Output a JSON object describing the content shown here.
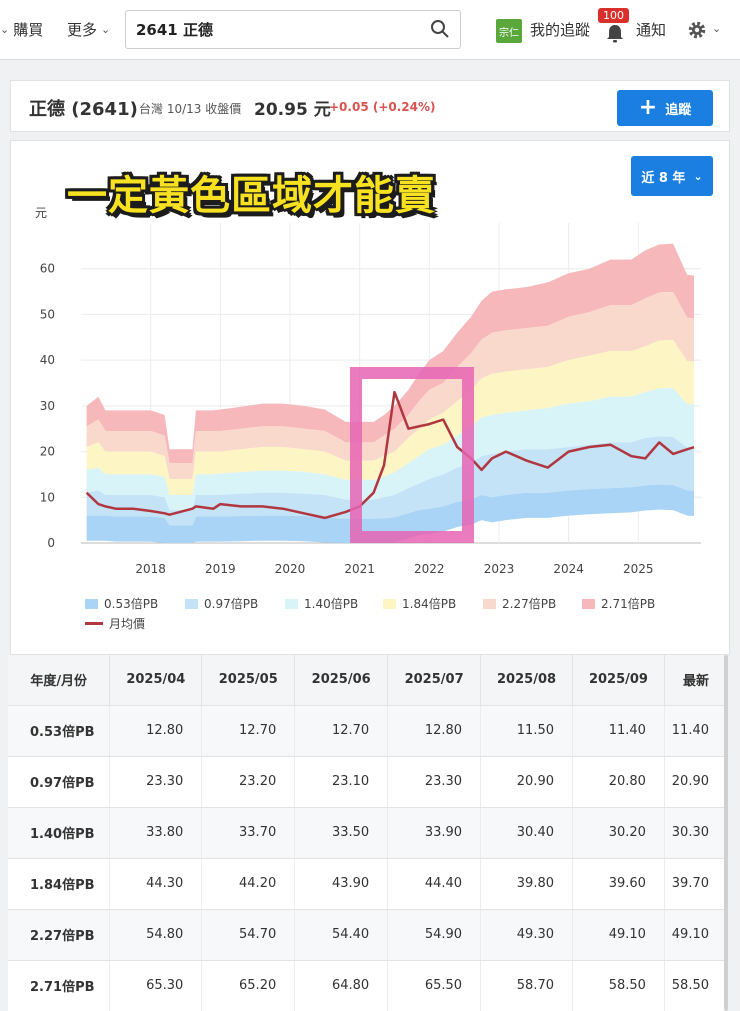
{
  "nav": {
    "buy": "購買",
    "more": "更多",
    "search_value": "2641 正德",
    "avatar_text": "宗仁",
    "tracking": "我的追蹤",
    "badge": "100",
    "notify": "通知"
  },
  "stock": {
    "name": "正德 (2641)",
    "meta": "台灣 10/13 收盤價",
    "price": "20.95 元",
    "change": "+0.05 (+0.24%)",
    "track_label": "追蹤"
  },
  "chart": {
    "overlay_text": "一定黃色區域才能賣",
    "range_label": "近 8 年",
    "unit": "元"
  },
  "chart_data": {
    "type": "area",
    "ylabel": "元",
    "ylim": [
      0,
      70
    ],
    "yticks": [
      0,
      10,
      20,
      30,
      40,
      50,
      60
    ],
    "xlim": [
      2017.0,
      2025.9
    ],
    "xticks": [
      "2018",
      "2019",
      "2020",
      "2021",
      "2022",
      "2023",
      "2024",
      "2025"
    ],
    "legend_position": "bottom",
    "x": [
      2017.08,
      2017.25,
      2017.35,
      2017.5,
      2017.75,
      2018.0,
      2018.2,
      2018.27,
      2018.6,
      2018.65,
      2018.9,
      2019.0,
      2019.3,
      2019.6,
      2019.9,
      2020.2,
      2020.5,
      2020.8,
      2021.0,
      2021.2,
      2021.35,
      2021.5,
      2021.7,
      2021.85,
      2022.0,
      2022.2,
      2022.4,
      2022.6,
      2022.75,
      2022.9,
      2023.1,
      2023.4,
      2023.7,
      2024.0,
      2024.3,
      2024.6,
      2024.9,
      2025.1,
      2025.3,
      2025.5,
      2025.7,
      2025.8
    ],
    "series": [
      {
        "name": "0.53倍PB",
        "color": "#a9d4f5",
        "values": [
          6,
          6,
          6,
          5.8,
          5.8,
          5.8,
          5.5,
          3.9,
          3.9,
          5.8,
          5.8,
          5.8,
          5.9,
          6.0,
          6.0,
          5.9,
          5.6,
          5.3,
          5.3,
          5.3,
          5.4,
          5.6,
          6.5,
          7.2,
          7.5,
          8.0,
          9.0,
          9.5,
          10.5,
          10.0,
          10.5,
          11.0,
          11.0,
          11.5,
          11.8,
          12.0,
          12.2,
          12.6,
          12.8,
          12.7,
          11.5,
          11.4
        ]
      },
      {
        "name": "0.97倍PB",
        "color": "#c5e3f7",
        "values": [
          11,
          11.5,
          10.5,
          10.5,
          10.5,
          10.5,
          10,
          7.2,
          7.2,
          10.5,
          10.5,
          10.5,
          10.8,
          11,
          11,
          10.8,
          10.5,
          9.5,
          9.5,
          9.5,
          10,
          10.5,
          12,
          13,
          14,
          15,
          16.5,
          17.5,
          19,
          19.5,
          20,
          20.5,
          20.5,
          21,
          21.5,
          22,
          22,
          23,
          23.3,
          23.2,
          20.9,
          20.9
        ]
      },
      {
        "name": "1.40倍PB",
        "color": "#d8f4f8",
        "values": [
          16,
          16.5,
          15,
          15,
          15,
          15,
          14.5,
          10.5,
          10.5,
          15,
          15,
          15.2,
          15.5,
          15.8,
          15.8,
          15.6,
          15,
          13.8,
          13.8,
          13.8,
          14.5,
          15.5,
          17.5,
          19,
          20.5,
          21.5,
          23.5,
          25.5,
          27.5,
          28,
          28.5,
          29,
          29.5,
          30.5,
          31,
          32,
          32,
          33,
          33.8,
          33.9,
          30.4,
          30.3
        ]
      },
      {
        "name": "1.84倍PB",
        "color": "#fdf5c4",
        "values": [
          21,
          22,
          20,
          20,
          20,
          20,
          19,
          14,
          14,
          20,
          20,
          20,
          20.5,
          21,
          21,
          20.5,
          20,
          18,
          18,
          18,
          19,
          20,
          23,
          25,
          27,
          28.5,
          31,
          33.5,
          36,
          37,
          37.5,
          38,
          38.5,
          40,
          41,
          42,
          42,
          43,
          44.3,
          44.4,
          39.8,
          39.7
        ]
      },
      {
        "name": "2.27倍PB",
        "color": "#fad9cd",
        "values": [
          25.5,
          27,
          24.5,
          24.5,
          24.5,
          24.5,
          23.5,
          17.5,
          17.5,
          24.5,
          24.5,
          24.5,
          25,
          25.5,
          25.5,
          25,
          24.5,
          22,
          22,
          22,
          23.5,
          25,
          28,
          31,
          33.5,
          35,
          38.5,
          41.5,
          44.5,
          46,
          46.5,
          47,
          47.5,
          49.5,
          50.5,
          52,
          52,
          53.5,
          54.8,
          54.9,
          49.3,
          49.1
        ]
      },
      {
        "name": "2.71倍PB",
        "color": "#f7b8bb",
        "values": [
          30,
          32,
          29,
          29,
          29,
          29,
          28,
          20.5,
          20.5,
          29,
          29,
          29.2,
          29.8,
          30.5,
          30.5,
          30,
          29.2,
          26.5,
          26.5,
          26.5,
          28,
          30,
          33.5,
          37,
          40,
          42,
          46,
          49.5,
          53,
          55,
          55.5,
          56,
          57,
          59,
          60,
          62,
          62,
          64,
          65.3,
          65.5,
          58.7,
          58.5
        ]
      },
      {
        "name": "月均價",
        "color": "#b0373f",
        "type": "line",
        "values": [
          11,
          8.5,
          8,
          7.5,
          7.5,
          7,
          6.5,
          6.2,
          7.5,
          8,
          7.5,
          8.5,
          8,
          8,
          7.5,
          6.5,
          5.5,
          6.8,
          8,
          11,
          17,
          33,
          25,
          25.5,
          26,
          27,
          21,
          18.5,
          16,
          18.5,
          20,
          18,
          16.5,
          20,
          21,
          21.5,
          19,
          18.5,
          22,
          19.5,
          20.5,
          20.95
        ]
      }
    ]
  },
  "table": {
    "headers": [
      "年度/月份",
      "2025/04",
      "2025/05",
      "2025/06",
      "2025/07",
      "2025/08",
      "2025/09",
      "最新"
    ],
    "rows": [
      {
        "label": "0.53倍PB",
        "values": [
          "12.80",
          "12.70",
          "12.70",
          "12.80",
          "11.50",
          "11.40",
          "11.40"
        ]
      },
      {
        "label": "0.97倍PB",
        "values": [
          "23.30",
          "23.20",
          "23.10",
          "23.30",
          "20.90",
          "20.80",
          "20.90"
        ]
      },
      {
        "label": "1.40倍PB",
        "values": [
          "33.80",
          "33.70",
          "33.50",
          "33.90",
          "30.40",
          "30.20",
          "30.30"
        ]
      },
      {
        "label": "1.84倍PB",
        "values": [
          "44.30",
          "44.20",
          "43.90",
          "44.40",
          "39.80",
          "39.60",
          "39.70"
        ]
      },
      {
        "label": "2.27倍PB",
        "values": [
          "54.80",
          "54.70",
          "54.40",
          "54.90",
          "49.30",
          "49.10",
          "49.10"
        ]
      },
      {
        "label": "2.71倍PB",
        "values": [
          "65.30",
          "65.20",
          "64.80",
          "65.50",
          "58.70",
          "58.50",
          "58.50"
        ]
      }
    ]
  },
  "colors": {
    "accent": "#1a7fe0",
    "change": "#d9534f",
    "highlight_box": "#e664b4"
  }
}
